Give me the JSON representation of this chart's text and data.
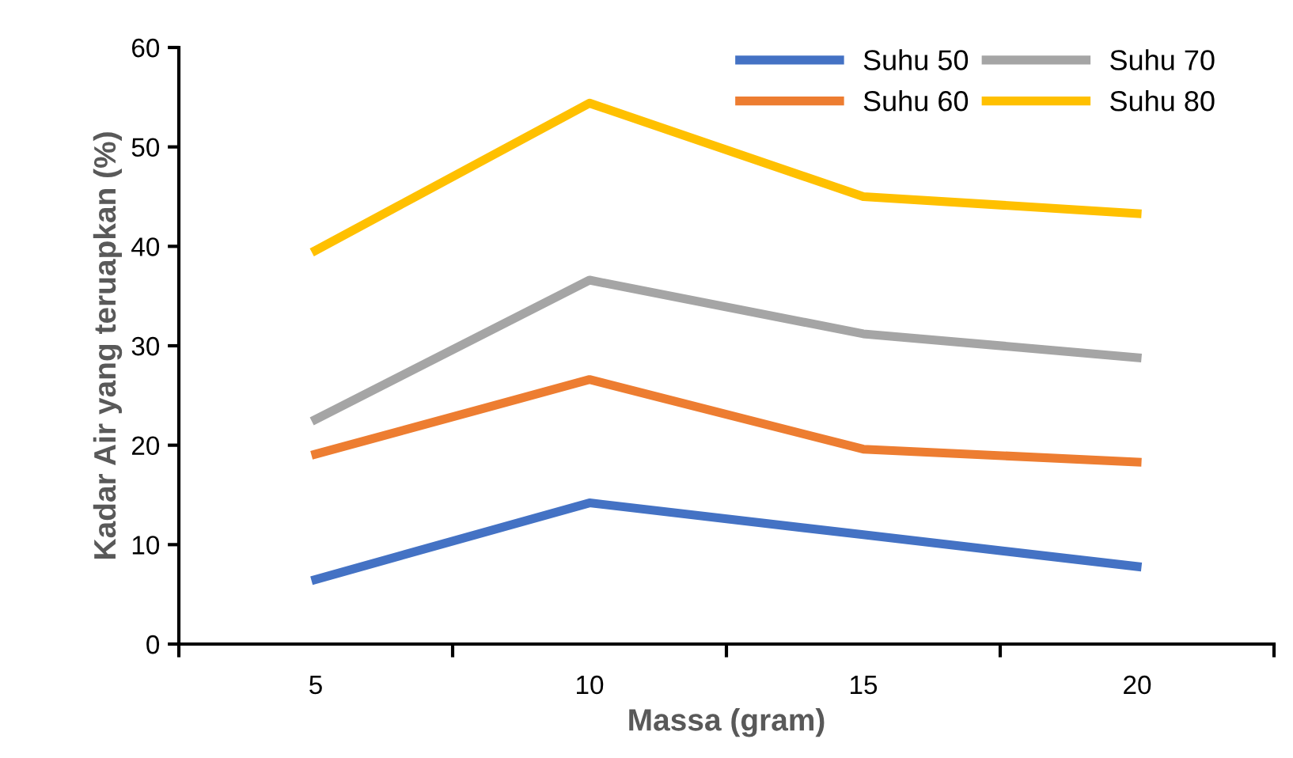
{
  "chart_data": {
    "type": "line",
    "xlabel": "Massa (gram)",
    "ylabel": "Kadar Air yang teruapkan (%)",
    "categories": [
      "5",
      "10",
      "15",
      "20"
    ],
    "series": [
      {
        "name": "Suhu 50",
        "color": "#4472c4",
        "values": [
          6.5,
          14.2,
          11.0,
          7.8
        ]
      },
      {
        "name": "Suhu 60",
        "color": "#ed7d31",
        "values": [
          19.1,
          26.6,
          19.6,
          18.3
        ]
      },
      {
        "name": "Suhu 70",
        "color": "#a5a5a5",
        "values": [
          22.6,
          36.6,
          31.2,
          28.8
        ]
      },
      {
        "name": "Suhu 80",
        "color": "#ffc000",
        "values": [
          39.6,
          54.4,
          45.0,
          43.3
        ]
      }
    ],
    "ylim": [
      0,
      60
    ],
    "yticks": [
      0,
      10,
      20,
      30,
      40,
      50,
      60
    ],
    "grid": false,
    "legend": "top right",
    "marker": "none",
    "line_style": "solid"
  }
}
